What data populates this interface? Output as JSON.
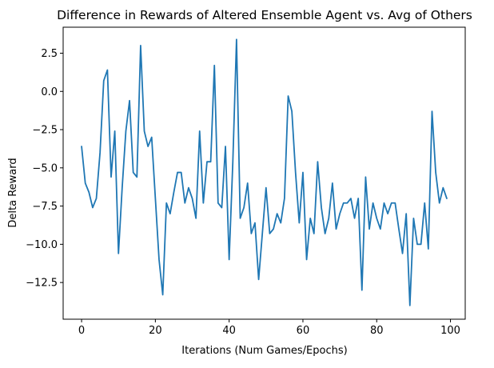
{
  "chart_data": {
    "type": "line",
    "title": "Difference in Rewards of Altered Ensemble Agent vs. Avg of Others",
    "xlabel": "Iterations (Num Games/Epochs)",
    "ylabel": "Delta Reward",
    "xlim": [
      -5,
      104
    ],
    "ylim": [
      -14.9,
      4.2
    ],
    "x_ticks": [
      0,
      20,
      40,
      60,
      80,
      100
    ],
    "x_tick_labels": [
      "0",
      "20",
      "40",
      "60",
      "80",
      "100"
    ],
    "y_ticks": [
      2.5,
      0,
      -2.5,
      -5,
      -7.5,
      -10,
      -12.5
    ],
    "y_tick_labels": [
      "2.5",
      "0.0",
      "−2.5",
      "−5.0",
      "−7.5",
      "−10.0",
      "−12.5"
    ],
    "grid": false,
    "legend": "none",
    "series": [
      {
        "color": "#1f77b4",
        "x": [
          0,
          1,
          2,
          3,
          4,
          5,
          6,
          7,
          8,
          9,
          10,
          11,
          12,
          13,
          14,
          15,
          16,
          17,
          18,
          19,
          20,
          21,
          22,
          23,
          24,
          25,
          26,
          27,
          28,
          29,
          30,
          31,
          32,
          33,
          34,
          35,
          36,
          37,
          38,
          39,
          40,
          41,
          42,
          43,
          44,
          45,
          46,
          47,
          48,
          49,
          50,
          51,
          52,
          53,
          54,
          55,
          56,
          57,
          58,
          59,
          60,
          61,
          62,
          63,
          64,
          65,
          66,
          67,
          68,
          69,
          70,
          71,
          72,
          73,
          74,
          75,
          76,
          77,
          78,
          79,
          80,
          81,
          82,
          83,
          84,
          85,
          86,
          87,
          88,
          89,
          90,
          91,
          92,
          93,
          94,
          95,
          96,
          97,
          98,
          99
        ],
        "y": [
          -3.6,
          -6.0,
          -6.6,
          -7.6,
          -7.0,
          -4.0,
          0.7,
          1.4,
          -5.6,
          -2.6,
          -10.6,
          -6.3,
          -2.6,
          -0.6,
          -5.3,
          -5.6,
          3.0,
          -2.6,
          -3.6,
          -3.0,
          -7.0,
          -11.0,
          -13.3,
          -7.3,
          -8.0,
          -6.6,
          -5.3,
          -5.3,
          -7.3,
          -6.3,
          -7.0,
          -8.3,
          -2.6,
          -7.3,
          -4.6,
          -4.6,
          1.7,
          -7.3,
          -7.6,
          -3.6,
          -11.0,
          -4.6,
          3.4,
          -8.3,
          -7.6,
          -6.0,
          -9.3,
          -8.6,
          -12.3,
          -9.3,
          -6.3,
          -9.3,
          -9.0,
          -8.0,
          -8.6,
          -7.0,
          -0.3,
          -1.3,
          -5.3,
          -8.6,
          -5.3,
          -11.0,
          -8.3,
          -9.3,
          -4.6,
          -7.6,
          -9.3,
          -8.3,
          -6.0,
          -9.0,
          -8.0,
          -7.3,
          -7.3,
          -7.0,
          -8.3,
          -7.0,
          -13.0,
          -5.6,
          -9.0,
          -7.3,
          -8.3,
          -9.0,
          -7.3,
          -8.0,
          -7.3,
          -7.3,
          -9.0,
          -10.6,
          -8.0,
          -14.0,
          -8.3,
          -10.0,
          -10.0,
          -7.3,
          -10.3,
          -1.3,
          -5.3,
          -7.3,
          -6.3,
          -7.0
        ]
      }
    ]
  }
}
